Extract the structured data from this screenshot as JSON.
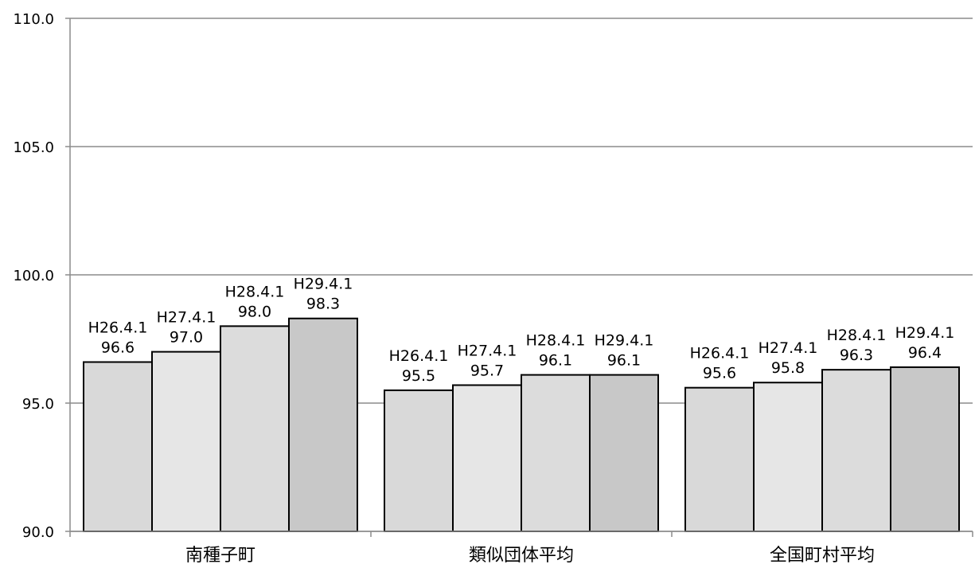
{
  "chart_data": {
    "type": "bar",
    "categories": [
      "南種子町",
      "類似団体平均",
      "全国町村平均"
    ],
    "series": [
      {
        "name": "H26.4.1",
        "values": [
          96.6,
          95.5,
          95.6
        ]
      },
      {
        "name": "H27.4.1",
        "values": [
          97.0,
          95.7,
          95.8
        ]
      },
      {
        "name": "H28.4.1",
        "values": [
          98.0,
          96.1,
          96.3
        ]
      },
      {
        "name": "H29.4.1",
        "values": [
          98.3,
          96.1,
          96.4
        ]
      }
    ],
    "series_colors": [
      "#d9d9d9",
      "#e6e6e6",
      "#dcdcdc",
      "#c8c8c8"
    ],
    "ylim": [
      90.0,
      110.0
    ],
    "yticks": [
      "90.0",
      "95.0",
      "100.0",
      "105.0",
      "110.0"
    ],
    "grid": true,
    "title": "",
    "xlabel": "",
    "ylabel": ""
  }
}
